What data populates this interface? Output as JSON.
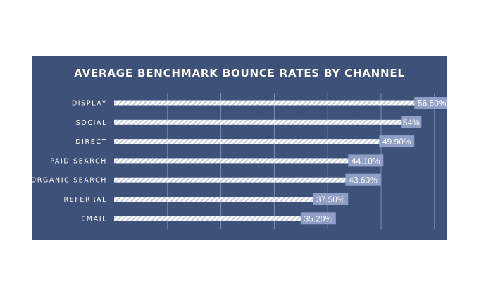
{
  "colors": {
    "panel_background": "#3e5178",
    "bar_stripe_light": "#ffffff",
    "bar_stripe_dark": "#c6cedf",
    "label_box": "#8e9ec4",
    "gridline": "#7f8fb3",
    "text": "#ffffff"
  },
  "chart_data": {
    "type": "bar",
    "orientation": "horizontal",
    "title": "AVERAGE BENCHMARK BOUNCE RATES BY CHANNEL",
    "categories": [
      "DISPLAY",
      "SOCIAL",
      "DIRECT",
      "PAID SEARCH",
      "ORGANIC SEARCH",
      "REFERRAL",
      "EMAIL"
    ],
    "values": [
      56.5,
      54,
      49.9,
      44.1,
      43.6,
      37.5,
      35.2
    ],
    "data_labels": [
      "56.50%",
      "54%",
      "49.90%",
      "44.10%",
      "43.60%",
      "37.50%",
      "35.20%"
    ],
    "xlabel": "",
    "ylabel": "",
    "xlim": [
      0,
      60
    ],
    "gridlines_at": [
      10,
      20,
      30,
      40,
      50,
      60
    ],
    "grid": true,
    "legend": "none"
  }
}
